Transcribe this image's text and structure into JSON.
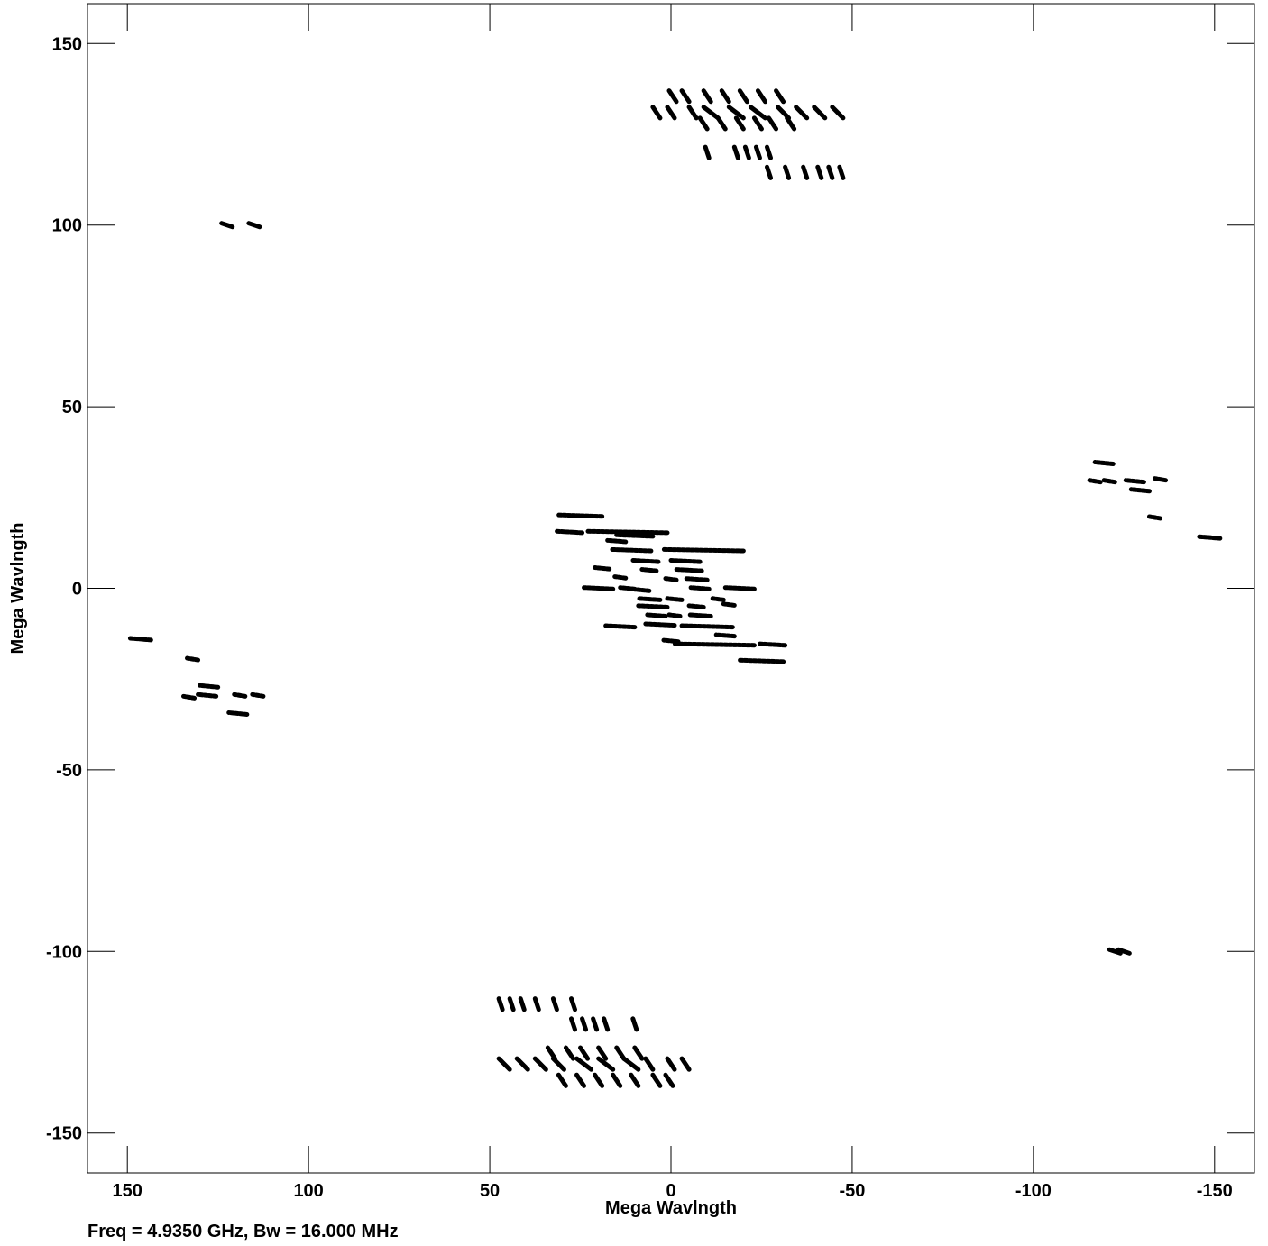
{
  "chart_data": {
    "type": "scatter",
    "xlabel": "Mega Wavlngth",
    "ylabel": "Mega Wavlngth",
    "caption": "Freq = 4.9350 GHz, Bw = 16.000 MHz",
    "xlim": [
      161,
      -161
    ],
    "ylim": [
      -161,
      161
    ],
    "x_ticks": [
      150,
      100,
      50,
      0,
      -50,
      -100,
      -150
    ],
    "x_tick_labels": [
      "150",
      "100",
      "50",
      "0",
      "-50",
      "-100",
      "-150"
    ],
    "y_ticks": [
      150,
      100,
      50,
      0,
      -50,
      -100,
      -150
    ],
    "y_tick_labels": [
      "150",
      "100",
      "50",
      "0",
      "-50",
      "-100",
      "-150"
    ],
    "grid": false,
    "legend": "none",
    "marker_color": "#000000",
    "series": [
      {
        "values": [
          {
            "x": -0.5,
            "y": 135.5,
            "dx": 2,
            "dy": 3
          },
          {
            "x": -4,
            "y": 135.5,
            "dx": 2,
            "dy": 3
          },
          {
            "x": -10,
            "y": 135.5,
            "dx": 2,
            "dy": 3
          },
          {
            "x": -15,
            "y": 135.5,
            "dx": 2,
            "dy": 3
          },
          {
            "x": -20,
            "y": 135.5,
            "dx": 2,
            "dy": 3
          },
          {
            "x": -25,
            "y": 135.5,
            "dx": 2,
            "dy": 3
          },
          {
            "x": -30,
            "y": 135.5,
            "dx": 2,
            "dy": 3
          },
          {
            "x": 4,
            "y": 131,
            "dx": 2,
            "dy": 3
          },
          {
            "x": 0,
            "y": 131,
            "dx": 2,
            "dy": 3
          },
          {
            "x": -6,
            "y": 131,
            "dx": 2,
            "dy": 3
          },
          {
            "x": -11,
            "y": 131,
            "dx": 4,
            "dy": 3
          },
          {
            "x": -18,
            "y": 131,
            "dx": 4,
            "dy": 3
          },
          {
            "x": -24,
            "y": 131,
            "dx": 4,
            "dy": 3
          },
          {
            "x": -31,
            "y": 131,
            "dx": 3,
            "dy": 3
          },
          {
            "x": -36,
            "y": 131,
            "dx": 3,
            "dy": 3
          },
          {
            "x": -41,
            "y": 131,
            "dx": 3,
            "dy": 3
          },
          {
            "x": -46,
            "y": 131,
            "dx": 3,
            "dy": 3
          },
          {
            "x": -9,
            "y": 128,
            "dx": 2,
            "dy": 3
          },
          {
            "x": -14,
            "y": 128,
            "dx": 2,
            "dy": 3
          },
          {
            "x": -19,
            "y": 128,
            "dx": 2,
            "dy": 3
          },
          {
            "x": -24,
            "y": 128,
            "dx": 2,
            "dy": 3
          },
          {
            "x": -28,
            "y": 128,
            "dx": 2,
            "dy": 3
          },
          {
            "x": -33,
            "y": 128,
            "dx": 2,
            "dy": 3
          },
          {
            "x": -10,
            "y": 120,
            "dx": 1,
            "dy": 3
          },
          {
            "x": -18,
            "y": 120,
            "dx": 1,
            "dy": 3
          },
          {
            "x": -21,
            "y": 120,
            "dx": 1,
            "dy": 3
          },
          {
            "x": -24,
            "y": 120,
            "dx": 1,
            "dy": 3
          },
          {
            "x": -27,
            "y": 120,
            "dx": 1,
            "dy": 3
          },
          {
            "x": -27,
            "y": 114.5,
            "dx": 1,
            "dy": 3
          },
          {
            "x": -32,
            "y": 114.5,
            "dx": 1,
            "dy": 3
          },
          {
            "x": -37,
            "y": 114.5,
            "dx": 1,
            "dy": 3
          },
          {
            "x": -41,
            "y": 114.5,
            "dx": 1,
            "dy": 3
          },
          {
            "x": -44,
            "y": 114.5,
            "dx": 1,
            "dy": 3
          },
          {
            "x": -47,
            "y": 114.5,
            "dx": 1,
            "dy": 3
          },
          {
            "x": 0.5,
            "y": -135.5,
            "dx": 2,
            "dy": 3
          },
          {
            "x": 4,
            "y": -135.5,
            "dx": 2,
            "dy": 3
          },
          {
            "x": 10,
            "y": -135.5,
            "dx": 2,
            "dy": 3
          },
          {
            "x": 15,
            "y": -135.5,
            "dx": 2,
            "dy": 3
          },
          {
            "x": 20,
            "y": -135.5,
            "dx": 2,
            "dy": 3
          },
          {
            "x": 25,
            "y": -135.5,
            "dx": 2,
            "dy": 3
          },
          {
            "x": 30,
            "y": -135.5,
            "dx": 2,
            "dy": 3
          },
          {
            "x": -4,
            "y": -131,
            "dx": 2,
            "dy": 3
          },
          {
            "x": 0,
            "y": -131,
            "dx": 2,
            "dy": 3
          },
          {
            "x": 6,
            "y": -131,
            "dx": 2,
            "dy": 3
          },
          {
            "x": 11,
            "y": -131,
            "dx": 4,
            "dy": 3
          },
          {
            "x": 18,
            "y": -131,
            "dx": 4,
            "dy": 3
          },
          {
            "x": 24,
            "y": -131,
            "dx": 4,
            "dy": 3
          },
          {
            "x": 31,
            "y": -131,
            "dx": 3,
            "dy": 3
          },
          {
            "x": 36,
            "y": -131,
            "dx": 3,
            "dy": 3
          },
          {
            "x": 41,
            "y": -131,
            "dx": 3,
            "dy": 3
          },
          {
            "x": 46,
            "y": -131,
            "dx": 3,
            "dy": 3
          },
          {
            "x": 9,
            "y": -128,
            "dx": 2,
            "dy": 3
          },
          {
            "x": 14,
            "y": -128,
            "dx": 2,
            "dy": 3
          },
          {
            "x": 19,
            "y": -128,
            "dx": 2,
            "dy": 3
          },
          {
            "x": 24,
            "y": -128,
            "dx": 2,
            "dy": 3
          },
          {
            "x": 28,
            "y": -128,
            "dx": 2,
            "dy": 3
          },
          {
            "x": 33,
            "y": -128,
            "dx": 2,
            "dy": 3
          },
          {
            "x": 10,
            "y": -120,
            "dx": 1,
            "dy": 3
          },
          {
            "x": 18,
            "y": -120,
            "dx": 1,
            "dy": 3
          },
          {
            "x": 21,
            "y": -120,
            "dx": 1,
            "dy": 3
          },
          {
            "x": 24,
            "y": -120,
            "dx": 1,
            "dy": 3
          },
          {
            "x": 27,
            "y": -120,
            "dx": 1,
            "dy": 3
          },
          {
            "x": 27,
            "y": -114.5,
            "dx": 1,
            "dy": 3
          },
          {
            "x": 32,
            "y": -114.5,
            "dx": 1,
            "dy": 3
          },
          {
            "x": 37,
            "y": -114.5,
            "dx": 1,
            "dy": 3
          },
          {
            "x": 41,
            "y": -114.5,
            "dx": 1,
            "dy": 3
          },
          {
            "x": 44,
            "y": -114.5,
            "dx": 1,
            "dy": 3
          },
          {
            "x": 47,
            "y": -114.5,
            "dx": 1,
            "dy": 3
          },
          {
            "x": 122.5,
            "y": 100,
            "dx": 3,
            "dy": 1
          },
          {
            "x": 115,
            "y": 100,
            "dx": 3,
            "dy": 1
          },
          {
            "x": -122.5,
            "y": -100,
            "dx": 3,
            "dy": 1
          },
          {
            "x": -125,
            "y": -100,
            "dx": 3,
            "dy": 1
          },
          {
            "x": 146.5,
            "y": -14,
            "dx": 6,
            "dy": 0.5
          },
          {
            "x": 132,
            "y": -19.5,
            "dx": 3,
            "dy": 0.5
          },
          {
            "x": 127.5,
            "y": -27,
            "dx": 5,
            "dy": 0.5
          },
          {
            "x": 133,
            "y": -30,
            "dx": 3,
            "dy": 0.5
          },
          {
            "x": 128,
            "y": -29.5,
            "dx": 5,
            "dy": 0.5
          },
          {
            "x": 119,
            "y": -29.5,
            "dx": 3,
            "dy": 0.5
          },
          {
            "x": 114,
            "y": -29.5,
            "dx": 3,
            "dy": 0.5
          },
          {
            "x": 119.5,
            "y": -34.5,
            "dx": 5,
            "dy": 0.5
          },
          {
            "x": -148.5,
            "y": 14,
            "dx": 6,
            "dy": 0.5
          },
          {
            "x": -133.5,
            "y": 19.5,
            "dx": 3,
            "dy": 0.5
          },
          {
            "x": -129.5,
            "y": 27,
            "dx": 5,
            "dy": 0.5
          },
          {
            "x": -135,
            "y": 30,
            "dx": 3,
            "dy": 0.5
          },
          {
            "x": -128,
            "y": 29.5,
            "dx": 5,
            "dy": 0.5
          },
          {
            "x": -117,
            "y": 29.5,
            "dx": 3,
            "dy": 0.5
          },
          {
            "x": -121,
            "y": 29.5,
            "dx": 3,
            "dy": 0.5
          },
          {
            "x": -119.5,
            "y": 34.5,
            "dx": 5,
            "dy": 0.5
          },
          {
            "x": 25,
            "y": 20,
            "dx": 12,
            "dy": 0.4
          },
          {
            "x": 28,
            "y": 15.5,
            "dx": 7,
            "dy": 0.4
          },
          {
            "x": 12,
            "y": 15.5,
            "dx": 22,
            "dy": 0.4
          },
          {
            "x": 10,
            "y": 14.5,
            "dx": 10,
            "dy": 0.4
          },
          {
            "x": 15,
            "y": 13,
            "dx": 5,
            "dy": 0.4
          },
          {
            "x": 11,
            "y": 10.5,
            "dx": 11,
            "dy": 0.4
          },
          {
            "x": -9,
            "y": 10.5,
            "dx": 22,
            "dy": 0.4
          },
          {
            "x": 7,
            "y": 7.5,
            "dx": 7,
            "dy": 0.4
          },
          {
            "x": -4,
            "y": 7.5,
            "dx": 8,
            "dy": 0.4
          },
          {
            "x": 19,
            "y": 5.5,
            "dx": 4,
            "dy": 0.4
          },
          {
            "x": 6,
            "y": 5,
            "dx": 4,
            "dy": 0.4
          },
          {
            "x": -5,
            "y": 5,
            "dx": 7,
            "dy": 0.4
          },
          {
            "x": 14,
            "y": 3,
            "dx": 3,
            "dy": 0.4
          },
          {
            "x": 0,
            "y": 2.5,
            "dx": 3,
            "dy": 0.4
          },
          {
            "x": -7,
            "y": 2.5,
            "dx": 6,
            "dy": 0.4
          },
          {
            "x": 20,
            "y": 0,
            "dx": 8,
            "dy": 0.4
          },
          {
            "x": 12,
            "y": 0,
            "dx": 4,
            "dy": 0.4
          },
          {
            "x": 8,
            "y": -0.5,
            "dx": 4,
            "dy": 0.4
          },
          {
            "x": -8,
            "y": 0,
            "dx": 5,
            "dy": 0.4
          },
          {
            "x": -19,
            "y": 0,
            "dx": 8,
            "dy": 0.4
          },
          {
            "x": 6,
            "y": -3,
            "dx": 6,
            "dy": 0.4
          },
          {
            "x": -1,
            "y": -3,
            "dx": 4,
            "dy": 0.4
          },
          {
            "x": -13,
            "y": -3,
            "dx": 3,
            "dy": 0.4
          },
          {
            "x": 5,
            "y": -5,
            "dx": 8,
            "dy": 0.4
          },
          {
            "x": -7,
            "y": -5,
            "dx": 4,
            "dy": 0.4
          },
          {
            "x": -16,
            "y": -4.5,
            "dx": 3,
            "dy": 0.4
          },
          {
            "x": 4,
            "y": -7.5,
            "dx": 5,
            "dy": 0.4
          },
          {
            "x": -1,
            "y": -7.5,
            "dx": 3,
            "dy": 0.4
          },
          {
            "x": -8,
            "y": -7.5,
            "dx": 6,
            "dy": 0.4
          },
          {
            "x": 14,
            "y": -10.5,
            "dx": 8,
            "dy": 0.4
          },
          {
            "x": 3,
            "y": -10,
            "dx": 8,
            "dy": 0.4
          },
          {
            "x": -10,
            "y": -10.5,
            "dx": 14,
            "dy": 0.4
          },
          {
            "x": -15,
            "y": -13,
            "dx": 5,
            "dy": 0.4
          },
          {
            "x": 0,
            "y": -14.5,
            "dx": 4,
            "dy": 0.4
          },
          {
            "x": -12,
            "y": -15.5,
            "dx": 22,
            "dy": 0.4
          },
          {
            "x": -28,
            "y": -15.5,
            "dx": 7,
            "dy": 0.4
          },
          {
            "x": -25,
            "y": -20,
            "dx": 12,
            "dy": 0.4
          }
        ]
      }
    ]
  }
}
